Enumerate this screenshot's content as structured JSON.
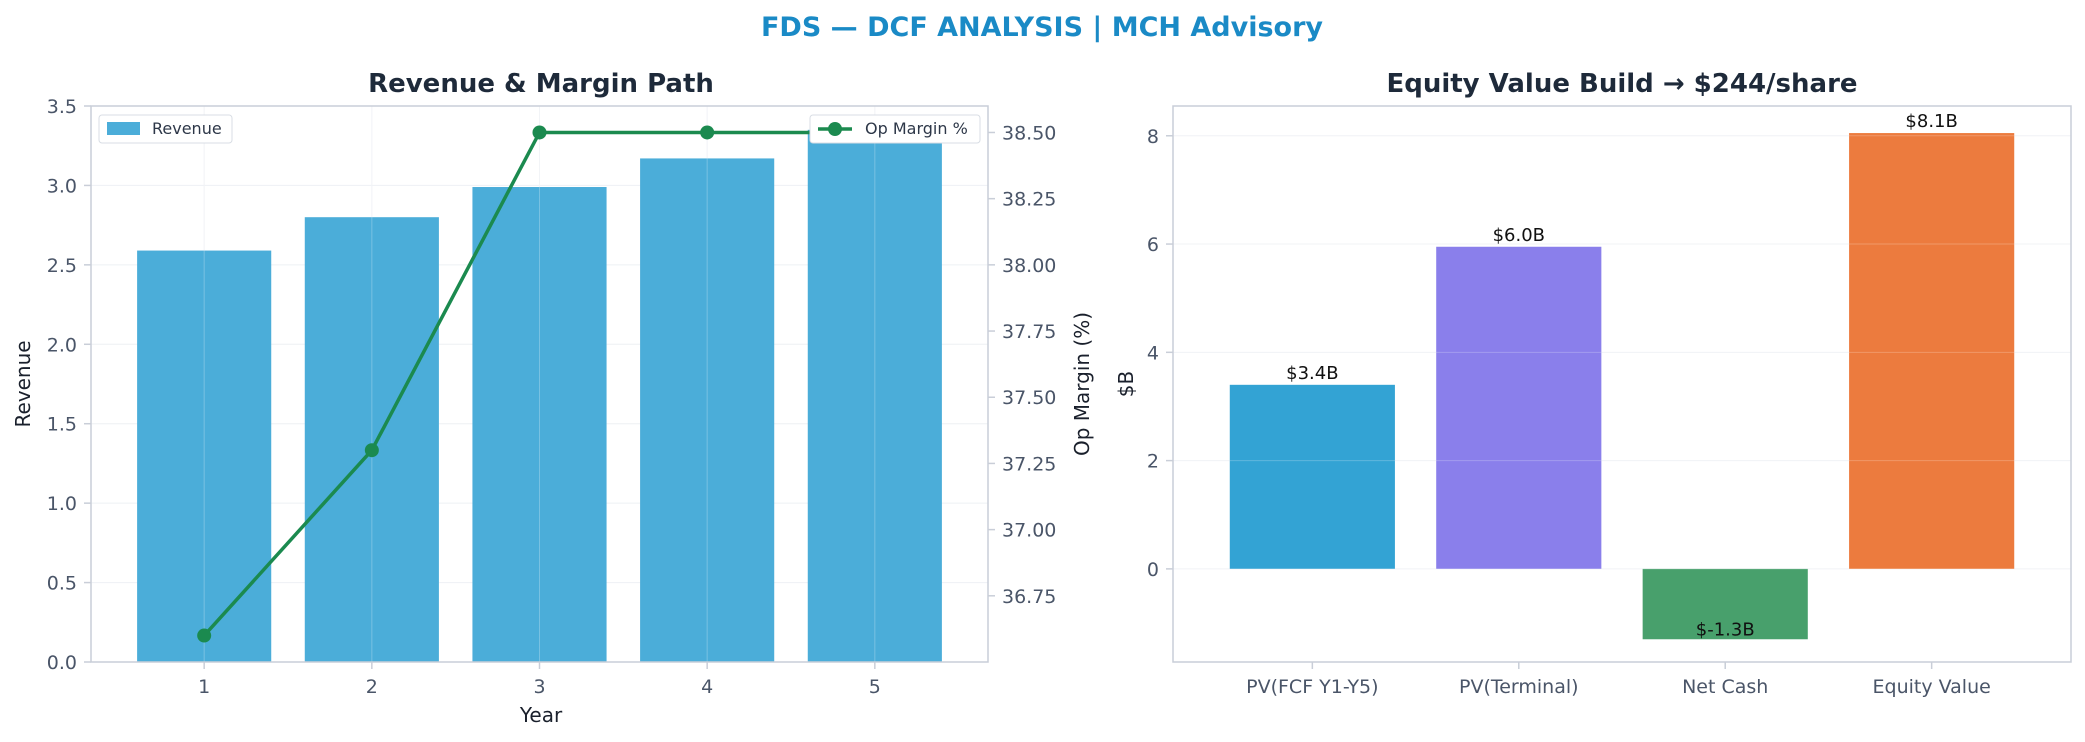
{
  "suptitle": "FDS — DCF ANALYSIS | MCH Advisory",
  "colors": {
    "revenue_bar": "#4badd9",
    "margin_line": "#1b8a4f",
    "title": "#1e2a3a",
    "suptitle": "#1a8ac6",
    "axis": "#c9ced8",
    "grid": "#eef0f4",
    "tick_text": "#4a5568"
  },
  "chart_data": [
    {
      "type": "bar",
      "title": "Revenue & Margin Path",
      "xlabel": "Year",
      "ylabel": "Revenue",
      "y2label": "Op Margin (%)",
      "categories": [
        "1",
        "2",
        "3",
        "4",
        "5"
      ],
      "ylim": [
        0,
        3.5
      ],
      "yticks": [
        "0.0",
        "0.5",
        "1.0",
        "1.5",
        "2.0",
        "2.5",
        "3.0",
        "3.5"
      ],
      "y2lim": [
        36.5,
        38.6
      ],
      "y2ticks": [
        "36.75",
        "37.00",
        "37.25",
        "37.50",
        "37.75",
        "38.00",
        "38.25",
        "38.50"
      ],
      "grid": true,
      "series": [
        {
          "name": "Revenue",
          "type": "bar",
          "axis": "left",
          "values": [
            2.59,
            2.8,
            2.99,
            3.17,
            3.35
          ]
        },
        {
          "name": "Op Margin %",
          "type": "line",
          "axis": "right",
          "values": [
            36.6,
            37.3,
            38.5,
            38.5,
            38.5
          ]
        }
      ],
      "legend": {
        "bars": "top-left",
        "line": "top-right"
      }
    },
    {
      "type": "bar",
      "title": "Equity Value Build → $244/share",
      "xlabel": "",
      "ylabel": "$B",
      "categories": [
        "PV(FCF Y1-Y5)",
        "PV(Terminal)",
        "Net Cash",
        "Equity Value"
      ],
      "values": [
        3.4,
        5.95,
        -1.3,
        8.05
      ],
      "data_labels": [
        "$3.4B",
        "$6.0B",
        "$-1.3B",
        "$8.1B"
      ],
      "bar_colors": [
        "#33a3d4",
        "#8a7feb",
        "#48a06c",
        "#ec7b3e"
      ],
      "ylim": [
        -1.72,
        8.55
      ],
      "yticks": [
        "0",
        "2",
        "4",
        "6",
        "8"
      ],
      "grid": true
    }
  ]
}
